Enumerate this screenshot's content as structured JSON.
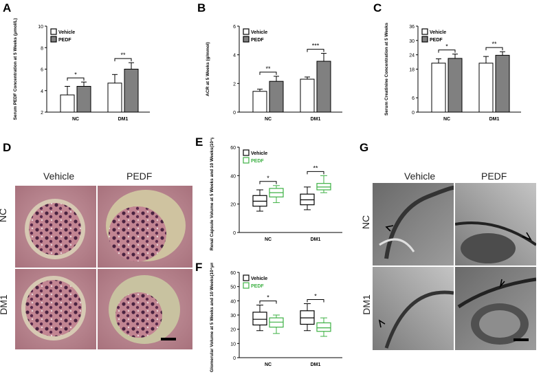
{
  "panels": {
    "A": "A",
    "B": "B",
    "C": "C",
    "D": "D",
    "E": "E",
    "F": "F",
    "G": "G"
  },
  "colors": {
    "vehicle_fill": "#ffffff",
    "pedf_fill": "#808080",
    "box_vehicle": "#000000",
    "box_pedf": "#3cb043",
    "he_stain": "#b8828c",
    "tem_gray": "#8a8a8a"
  },
  "micrographs": {
    "D": {
      "col_labels": [
        "Vehicle",
        "PEDF"
      ],
      "row_labels": [
        "NC",
        "DM1"
      ]
    },
    "G": {
      "col_labels": [
        "Vehicle",
        "PEDF"
      ],
      "row_labels": [
        "NC",
        "DM1"
      ]
    }
  },
  "chart_data": [
    {
      "id": "A",
      "type": "bar",
      "ylabel": "Serum PEDF Concentration at 5 Weeks (μmol/L)",
      "categories": [
        "NC",
        "DM1"
      ],
      "ylim": [
        2,
        10
      ],
      "yticks": [
        "2",
        "4",
        "6",
        "8",
        "10"
      ],
      "legend": [
        "Vehicle",
        "PEDF"
      ],
      "series": [
        {
          "name": "Vehicle",
          "values": [
            3.6,
            4.7
          ],
          "errors": [
            0.8,
            0.8
          ]
        },
        {
          "name": "PEDF",
          "values": [
            4.4,
            6.0
          ],
          "errors": [
            0.4,
            0.6
          ]
        }
      ],
      "significance": [
        "*",
        "**"
      ]
    },
    {
      "id": "B",
      "type": "bar",
      "ylabel": "ACR at 5 Weeks (g/mmol)",
      "categories": [
        "NC",
        "DM1"
      ],
      "ylim": [
        0,
        6
      ],
      "yticks": [
        "0",
        "2",
        "4",
        "6"
      ],
      "legend": [
        "Vehicle",
        "PEDF"
      ],
      "series": [
        {
          "name": "Vehicle",
          "values": [
            1.45,
            2.3
          ],
          "errors": [
            0.15,
            0.15
          ]
        },
        {
          "name": "PEDF",
          "values": [
            2.15,
            3.55
          ],
          "errors": [
            0.35,
            0.55
          ]
        }
      ],
      "significance": [
        "**",
        "***"
      ]
    },
    {
      "id": "C",
      "type": "bar",
      "ylabel": "Serum Creatinine Concentration at 5 Weeks",
      "categories": [
        "NC",
        "DM1"
      ],
      "ylim": [
        0,
        36
      ],
      "yticks": [
        "0",
        "6",
        "18",
        "24",
        "30",
        "36"
      ],
      "legend": [
        "Vehicle",
        "PEDF"
      ],
      "series": [
        {
          "name": "Vehicle",
          "values": [
            20.5,
            20.5
          ],
          "errors": [
            1.8,
            2.8
          ]
        },
        {
          "name": "PEDF",
          "values": [
            22.5,
            23.8
          ],
          "errors": [
            1.8,
            1.5
          ]
        }
      ],
      "significance": [
        "*",
        "**"
      ]
    },
    {
      "id": "E",
      "type": "box",
      "ylabel": "Renal Capsule Volume at 5 Weeks and 10 Weeks(10⁴μm³)",
      "categories": [
        "NC",
        "DM1"
      ],
      "ylim": [
        0,
        60
      ],
      "yticks": [
        "0",
        "20",
        "40",
        "60"
      ],
      "legend": [
        "Vehicle",
        "PEDF"
      ],
      "series": [
        {
          "name": "Vehicle",
          "boxes": [
            {
              "min": 15,
              "q1": 18.5,
              "median": 22,
              "q3": 26,
              "max": 30
            },
            {
              "min": 16,
              "q1": 19.5,
              "median": 23,
              "q3": 27,
              "max": 32
            }
          ]
        },
        {
          "name": "PEDF",
          "boxes": [
            {
              "min": 21,
              "q1": 25,
              "median": 28,
              "q3": 31,
              "max": 33
            },
            {
              "min": 28,
              "q1": 30,
              "median": 32,
              "q3": 34.5,
              "max": 40
            }
          ]
        }
      ],
      "significance": [
        "*",
        "**"
      ]
    },
    {
      "id": "F",
      "type": "box",
      "ylabel": "Glomerular Volume at 5 Weeks and 10 Weeks(10⁴μm³)",
      "categories": [
        "NC",
        "DM1"
      ],
      "ylim": [
        0,
        60
      ],
      "yticks": [
        "0",
        "10",
        "20",
        "30",
        "40",
        "50",
        "60"
      ],
      "legend": [
        "Vehicle",
        "PEDF"
      ],
      "series": [
        {
          "name": "Vehicle",
          "boxes": [
            {
              "min": 19,
              "q1": 23,
              "median": 27,
              "q3": 32,
              "max": 37
            },
            {
              "min": 19,
              "q1": 23.5,
              "median": 28,
              "q3": 33,
              "max": 38
            }
          ]
        },
        {
          "name": "PEDF",
          "boxes": [
            {
              "min": 17,
              "q1": 21.5,
              "median": 25,
              "q3": 28,
              "max": 30
            },
            {
              "min": 15,
              "q1": 18.5,
              "median": 21,
              "q3": 24.5,
              "max": 28
            }
          ]
        }
      ],
      "significance": [
        "*",
        "*"
      ]
    }
  ]
}
